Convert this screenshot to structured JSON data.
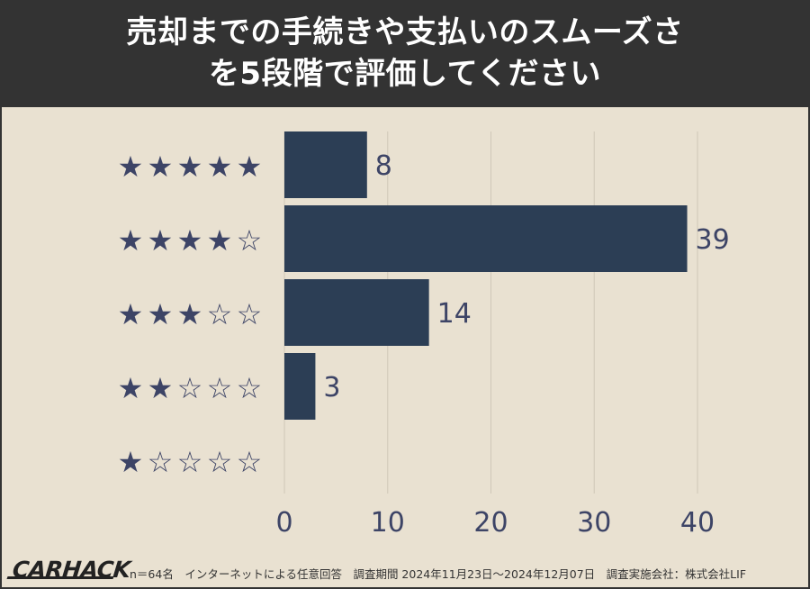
{
  "header": {
    "title_line1": "売却までの手続きや支払いのスムーズさ",
    "title_line2": "を5段階で評価してください"
  },
  "footer": {
    "logo": "CARHACK",
    "note": "n＝64名　インターネットによる任意回答　調査期間 2024年11月23日〜2024年12月07日　調査実施会社：株式会社LIF"
  },
  "colors": {
    "bar": "#2c3e55",
    "star": "#3d4466",
    "grid": "#cfc7b8",
    "text": "#3d4466",
    "title_bg": "#333333",
    "background": "#e9e1d1"
  },
  "chart_data": {
    "type": "bar",
    "orientation": "horizontal",
    "categories": [
      "★★★★★",
      "★★★★☆",
      "★★★☆☆",
      "★★☆☆☆",
      "★☆☆☆☆"
    ],
    "values": [
      8,
      39,
      14,
      3,
      0
    ],
    "xticks": [
      "0",
      "10",
      "20",
      "30",
      "40"
    ],
    "xlim": [
      0,
      40
    ],
    "grid": true,
    "data_labels": [
      "8",
      "39",
      "14",
      "3",
      ""
    ]
  }
}
